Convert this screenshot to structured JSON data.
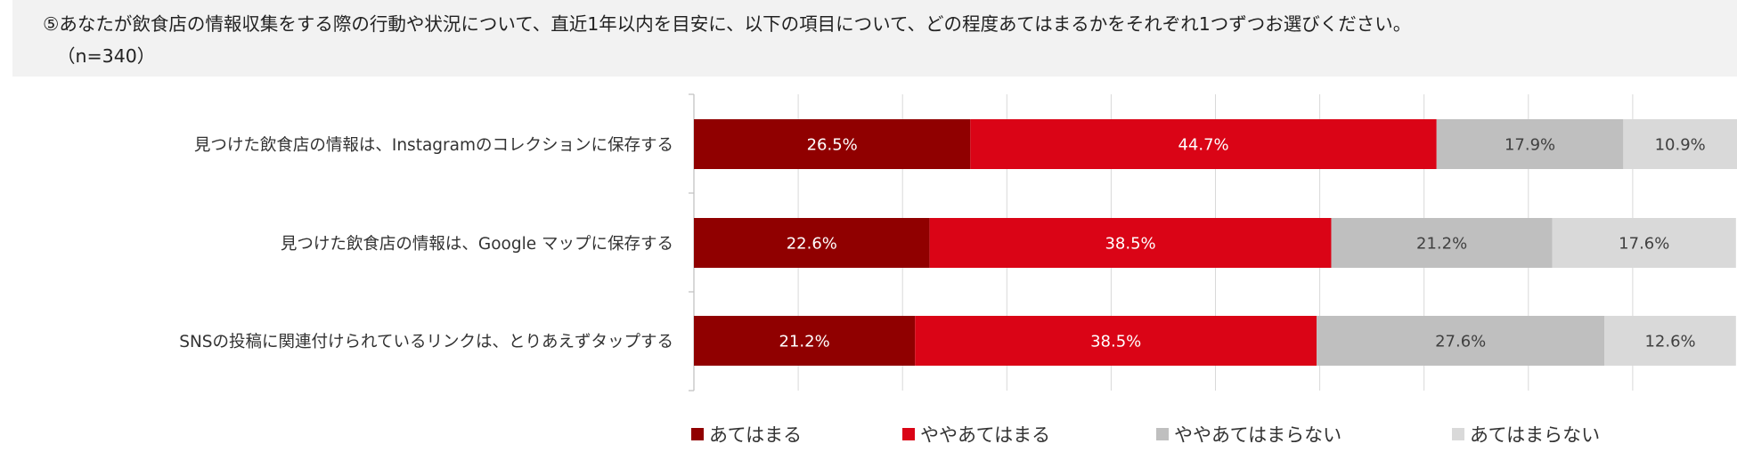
{
  "header": {
    "question": "⑤あなたが飲食店の情報収集をする際の行動や状況について、直近1年以内を目安に、以下の項目について、どの程度あてはまるかをそれぞれ1つずつお選びください。",
    "sample": "（n=340）"
  },
  "chart_data": {
    "type": "bar",
    "orientation": "horizontal",
    "stacked": "100%",
    "categories": [
      "見つけた飲食店の情報は、Instagramのコレクションに保存する",
      "見つけた飲食店の情報は、Google マップに保存する",
      "SNSの投稿に関連付けられているリンクは、とりあえずタップする"
    ],
    "series": [
      {
        "name": "あてはまる",
        "color": "#900000",
        "values": [
          26.5,
          22.6,
          21.2
        ],
        "labels": [
          "26.5%",
          "22.6%",
          "21.2%"
        ]
      },
      {
        "name": "ややあてはまる",
        "color": "#da0416",
        "values": [
          44.7,
          38.5,
          38.5
        ],
        "labels": [
          "44.7%",
          "38.5%",
          "38.5%"
        ]
      },
      {
        "name": "ややあてはまらない",
        "color": "#bfbfbf",
        "values": [
          17.9,
          21.2,
          27.6
        ],
        "labels": [
          "17.9%",
          "21.2%",
          "27.6%"
        ]
      },
      {
        "name": "あてはまらない",
        "color": "#d9d9d9",
        "values": [
          10.9,
          17.6,
          12.6
        ],
        "labels": [
          "10.9%",
          "17.6%",
          "12.6%"
        ]
      }
    ],
    "xlim": [
      0,
      100
    ],
    "grid": true,
    "legend": "bottom"
  }
}
